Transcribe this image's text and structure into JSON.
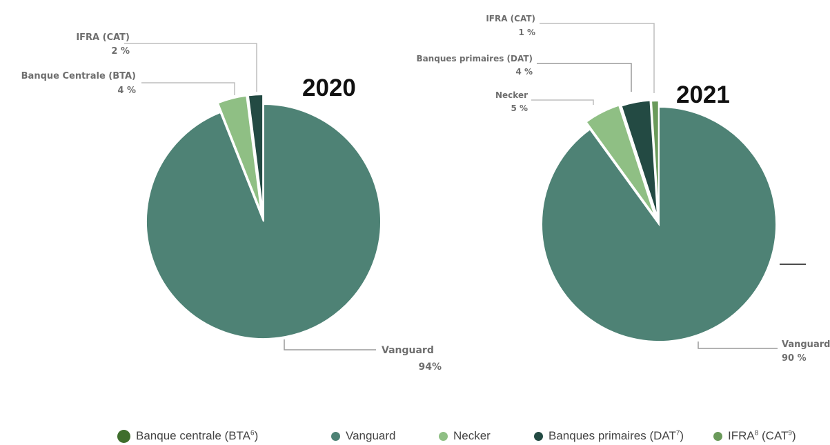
{
  "chart_data": [
    {
      "type": "pie",
      "title": "2020",
      "slices": [
        {
          "name": "Vanguard",
          "value": 94,
          "label": "Vanguard",
          "percent_label": "94%",
          "color": "#4e8275"
        },
        {
          "name": "Banque Centrale (BTA)",
          "value": 4,
          "label": "Banque Centrale (BTA)",
          "percent_label": "4 %",
          "color": "#8fbf84"
        },
        {
          "name": "IFRA (CAT)",
          "value": 2,
          "label": "IFRA (CAT)",
          "percent_label": "2 %",
          "color": "#234a43"
        }
      ]
    },
    {
      "type": "pie",
      "title": "2021",
      "slices": [
        {
          "name": "Vanguard",
          "value": 90,
          "label": "Vanguard",
          "percent_label": "90 %",
          "color": "#4e8275"
        },
        {
          "name": "Necker",
          "value": 5,
          "label": "Necker",
          "percent_label": "5 %",
          "color": "#8fbf84"
        },
        {
          "name": "Banques primaires (DAT)",
          "value": 4,
          "label": "Banques primaires (DAT)",
          "percent_label": "4 %",
          "color": "#234a43"
        },
        {
          "name": "IFRA (CAT)",
          "value": 1,
          "label": "IFRA (CAT)",
          "percent_label": "1 %",
          "color": "#6a9a5a"
        }
      ]
    }
  ],
  "legend": [
    {
      "label": "Banque centrale (BTA",
      "sup1": "6",
      "suffix": ")",
      "color": "#3f6e2c",
      "icon": "circle-marker"
    },
    {
      "label": "Vanguard",
      "color": "#4e8275",
      "icon": "circle-marker"
    },
    {
      "label": "Necker",
      "color": "#8fbf84",
      "icon": "circle-marker"
    },
    {
      "label": "Banques primaires (DAT",
      "sup1": "7",
      "suffix": ")",
      "color": "#234a43",
      "icon": "circle-marker"
    },
    {
      "label": "IFRA",
      "sup1": "8",
      "mid": " (CAT",
      "sup2": "9",
      "suffix": ")",
      "color": "#6a9a5a",
      "icon": "circle-marker"
    }
  ]
}
